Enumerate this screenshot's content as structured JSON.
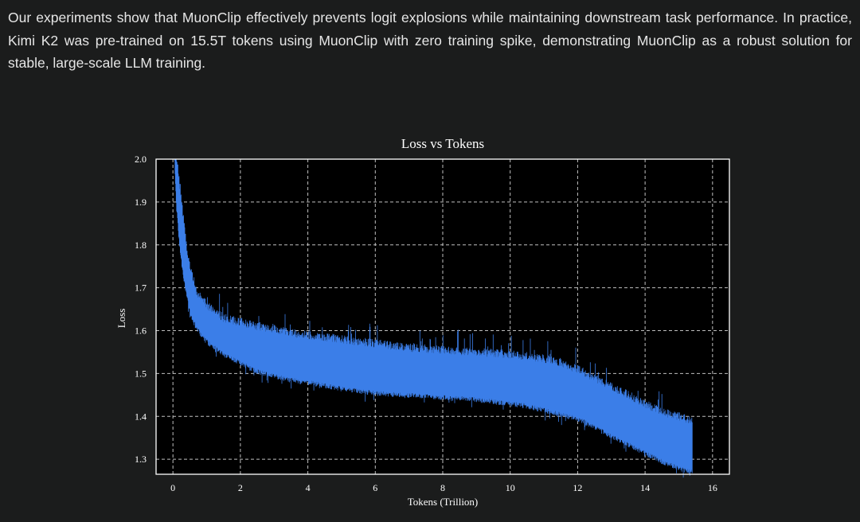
{
  "article": {
    "paragraph": "Our experiments show that MuonClip effectively prevents logit explosions while maintaining downstream task performance. In practice, Kimi K2 was pre-trained on 15.5T tokens using MuonClip with zero training spike, demonstrating MuonClip as a robust solution for stable, large-scale LLM training."
  },
  "colors": {
    "background": "#1b1c1c",
    "plot_background": "#000000",
    "series_color": "#3b7ee8",
    "text": "#e6e6e6"
  },
  "chart_data": {
    "type": "line",
    "title": "Loss vs Tokens",
    "xlabel": "Tokens (Trillion)",
    "ylabel": "Loss",
    "xlim": [
      -0.5,
      16.5
    ],
    "ylim": [
      1.265,
      2.0
    ],
    "xticks": [
      0,
      2,
      4,
      6,
      8,
      10,
      12,
      14,
      16
    ],
    "yticks": [
      1.3,
      1.4,
      1.5,
      1.6,
      1.7,
      1.8,
      1.9,
      2.0
    ],
    "ytick_labels": [
      "1.3",
      "1.4",
      "1.5",
      "1.6",
      "1.7",
      "1.8",
      "1.9",
      "2.0"
    ],
    "grid": true,
    "legend": false,
    "series": [
      {
        "x": [
          0.05,
          0.1,
          0.2,
          0.3,
          0.4,
          0.5,
          0.7,
          1.0,
          1.5,
          2.0,
          2.5,
          3.0,
          3.5,
          4.0,
          5.0,
          6.0,
          7.0,
          8.0,
          9.0,
          10.0,
          10.5,
          11.0,
          11.5,
          12.0,
          12.5,
          13.0,
          13.5,
          14.0,
          14.5,
          15.0,
          15.4
        ],
        "upper": [
          2.0,
          2.0,
          1.93,
          1.86,
          1.79,
          1.74,
          1.68,
          1.65,
          1.62,
          1.61,
          1.6,
          1.595,
          1.585,
          1.58,
          1.57,
          1.56,
          1.55,
          1.545,
          1.54,
          1.535,
          1.53,
          1.525,
          1.515,
          1.5,
          1.48,
          1.46,
          1.44,
          1.42,
          1.4,
          1.39,
          1.38
        ],
        "lower": [
          2.0,
          1.9,
          1.8,
          1.74,
          1.69,
          1.65,
          1.61,
          1.58,
          1.55,
          1.53,
          1.51,
          1.5,
          1.49,
          1.485,
          1.47,
          1.46,
          1.455,
          1.45,
          1.445,
          1.435,
          1.43,
          1.42,
          1.41,
          1.4,
          1.38,
          1.36,
          1.34,
          1.32,
          1.3,
          1.285,
          1.275
        ]
      }
    ]
  }
}
